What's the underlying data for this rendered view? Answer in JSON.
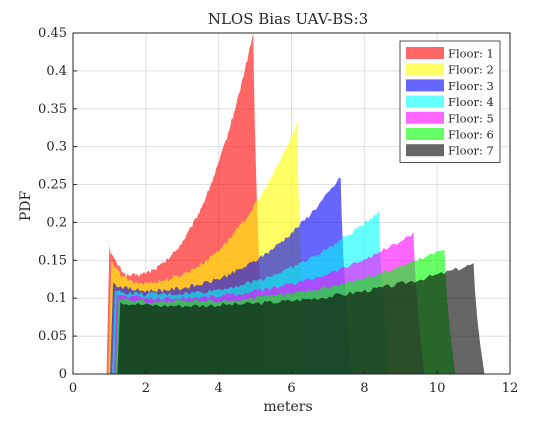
{
  "chart_data": {
    "type": "area",
    "title": "NLOS Bias UAV-BS:3",
    "xlabel": "meters",
    "ylabel": "PDF",
    "xlim": [
      0,
      12
    ],
    "ylim": [
      0,
      0.45
    ],
    "xticks": [
      "0",
      "2",
      "4",
      "6",
      "8",
      "10",
      "12"
    ],
    "yticks": [
      "0",
      "0.05",
      "0.1",
      "0.15",
      "0.2",
      "0.25",
      "0.3",
      "0.35",
      "0.4",
      "0.45"
    ],
    "grid": true,
    "legend_position": "top-right",
    "series": [
      {
        "name": "Floor: 1",
        "color": "#ff0000",
        "x_start": 1.0,
        "x_end": 4.95,
        "y_start": 0.17,
        "y_min": 0.13,
        "y_end": 0.45
      },
      {
        "name": "Floor: 2",
        "color": "#ffff00",
        "x_start": 1.05,
        "x_end": 6.15,
        "y_start": 0.15,
        "y_min": 0.12,
        "y_end": 0.33
      },
      {
        "name": "Floor: 3",
        "color": "#0000ff",
        "x_start": 1.1,
        "x_end": 7.35,
        "y_start": 0.12,
        "y_min": 0.11,
        "y_end": 0.26
      },
      {
        "name": "Floor: 4",
        "color": "#00ffff",
        "x_start": 1.15,
        "x_end": 8.4,
        "y_start": 0.11,
        "y_min": 0.105,
        "y_end": 0.215
      },
      {
        "name": "Floor: 5",
        "color": "#ff00ff",
        "x_start": 1.2,
        "x_end": 9.35,
        "y_start": 0.105,
        "y_min": 0.1,
        "y_end": 0.185
      },
      {
        "name": "Floor: 6",
        "color": "#00ff00",
        "x_start": 1.25,
        "x_end": 10.2,
        "y_start": 0.1,
        "y_min": 0.095,
        "y_end": 0.165
      },
      {
        "name": "Floor: 7",
        "color": "#000000",
        "x_start": 1.3,
        "x_end": 11.0,
        "y_start": 0.095,
        "y_min": 0.09,
        "y_end": 0.145
      }
    ]
  }
}
